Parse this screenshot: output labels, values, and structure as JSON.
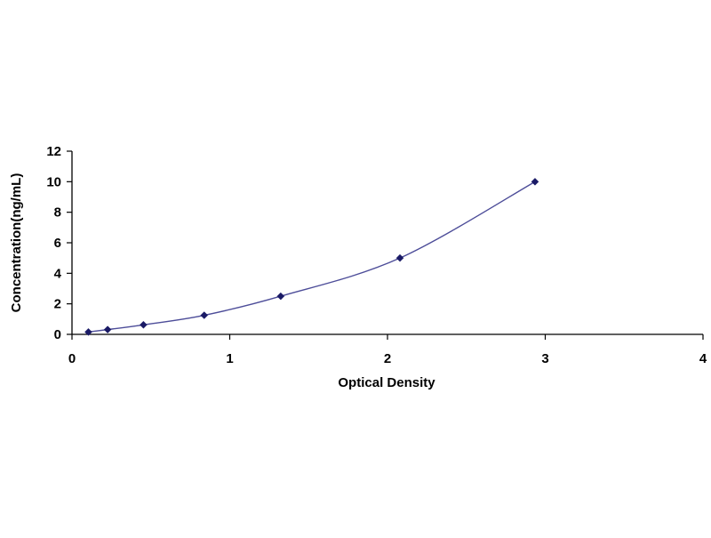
{
  "chart_data": {
    "type": "scatter",
    "xlabel": "Optical Density",
    "ylabel": "Concentration(ng/mL)",
    "xlim": [
      0,
      4
    ],
    "ylim": [
      0,
      12
    ],
    "x_ticks": [
      "0",
      "1",
      "2",
      "3",
      "4"
    ],
    "y_ticks": [
      "0",
      "2",
      "4",
      "6",
      "8",
      "10",
      "12"
    ],
    "grid": false,
    "legend": "none",
    "trendline": "smooth curve",
    "series": [
      {
        "x": [
          0.104,
          0.226,
          0.453,
          0.838,
          1.323,
          2.079,
          2.935
        ],
        "y": [
          0.156,
          0.313,
          0.625,
          1.25,
          2.5,
          5.0,
          10.0
        ]
      }
    ],
    "colors": {
      "line": "#4d4d99",
      "marker": "#1a1a66",
      "axis": "#000000"
    }
  }
}
